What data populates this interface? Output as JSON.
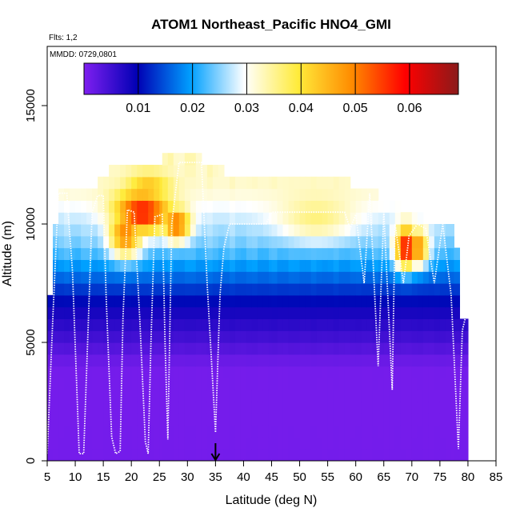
{
  "chart_data": {
    "type": "heatmap",
    "title": "ATOM1 Northeast_Pacific HNO4_GMI",
    "flights_label": "Flts: 1,2",
    "dates_label": "MMDD: 0729,0801",
    "xlabel": "Latitude (deg N)",
    "ylabel": "Altitude (m)",
    "xlim": [
      5,
      85
    ],
    "ylim": [
      0,
      17500
    ],
    "x_ticks": [
      "5",
      "10",
      "15",
      "20",
      "25",
      "30",
      "35",
      "40",
      "45",
      "50",
      "55",
      "60",
      "65",
      "70",
      "75",
      "80",
      "85"
    ],
    "y_ticks": [
      "0",
      "5000",
      "10000",
      "15000"
    ],
    "colorbar": {
      "range": [
        0,
        0.069
      ],
      "ticks": [
        "0.01",
        "0.02",
        "0.03",
        "0.04",
        "0.05",
        "0.06"
      ],
      "tick_values": [
        0.01,
        0.02,
        0.03,
        0.04,
        0.05,
        0.06
      ],
      "colors": [
        "#7f1ff0",
        "#0000b4",
        "#00a0ff",
        "#ffffff",
        "#ffeb3b",
        "#ff8c00",
        "#ff0000",
        "#8b1a1a"
      ]
    },
    "marker_latitude": 35,
    "columns": [
      {
        "x": [
          5.0,
          6.0
        ],
        "top": 7000
      },
      {
        "x": [
          6.0,
          7.0
        ],
        "top": 10000
      },
      {
        "x": [
          7.0,
          14.0
        ],
        "top": 11500
      },
      {
        "x": [
          14.0,
          16.0
        ],
        "top": 12000
      },
      {
        "x": [
          16.0,
          25.5
        ],
        "top": 12500
      },
      {
        "x": [
          25.5,
          32.5
        ],
        "top": 13000
      },
      {
        "x": [
          32.5,
          36.5
        ],
        "top": 12500
      },
      {
        "x": [
          36.5,
          45.0
        ],
        "top": 12000
      },
      {
        "x": [
          45.0,
          59.0
        ],
        "top": 12000
      },
      {
        "x": [
          59.0,
          64.0
        ],
        "top": 11500
      },
      {
        "x": [
          64.0,
          68.0
        ],
        "top": 11000
      },
      {
        "x": [
          68.0,
          72.0
        ],
        "top": 10500
      },
      {
        "x": [
          72.0,
          77.5
        ],
        "top": 10000
      },
      {
        "x": [
          77.5,
          78.5
        ],
        "top": 9000
      },
      {
        "x": [
          78.5,
          80.0
        ],
        "top": 6000
      }
    ],
    "hotspots": [
      {
        "lat": 22.0,
        "alt": 10500,
        "value": 0.058,
        "rx": 5.0,
        "ry": 900
      },
      {
        "lat": 19.0,
        "alt": 9600,
        "value": 0.05,
        "rx": 3.0,
        "ry": 1000
      },
      {
        "lat": 28.0,
        "alt": 10000,
        "value": 0.052,
        "rx": 2.5,
        "ry": 700
      },
      {
        "lat": 23.0,
        "alt": 11500,
        "value": 0.044,
        "rx": 4.0,
        "ry": 700
      },
      {
        "lat": 69.0,
        "alt": 9000,
        "value": 0.06,
        "rx": 2.0,
        "ry": 900
      },
      {
        "lat": 71.0,
        "alt": 9000,
        "value": 0.05,
        "rx": 2.0,
        "ry": 800
      },
      {
        "lat": 53.0,
        "alt": 10300,
        "value": 0.036,
        "rx": 7.0,
        "ry": 1000
      }
    ],
    "flight_track": [
      [
        5.0,
        300
      ],
      [
        6.0,
        6000
      ],
      [
        7.0,
        11300
      ],
      [
        8.5,
        11300
      ],
      [
        9.5,
        8000
      ],
      [
        10.7,
        300
      ],
      [
        11.5,
        300
      ],
      [
        12.5,
        7000
      ],
      [
        13.0,
        10500
      ],
      [
        14.0,
        11200
      ],
      [
        15.0,
        11200
      ],
      [
        15.5,
        7000
      ],
      [
        16.5,
        1000
      ],
      [
        17.2,
        300
      ],
      [
        18.0,
        400
      ],
      [
        18.5,
        6000
      ],
      [
        19.3,
        10600
      ],
      [
        20.5,
        10500
      ],
      [
        21.5,
        6000
      ],
      [
        22.5,
        800
      ],
      [
        23.0,
        300
      ],
      [
        23.5,
        5000
      ],
      [
        24.2,
        10300
      ],
      [
        25.5,
        10400
      ],
      [
        26.0,
        5000
      ],
      [
        26.5,
        900
      ],
      [
        27.2,
        10000
      ],
      [
        28.5,
        12600
      ],
      [
        32.5,
        12600
      ],
      [
        33.5,
        7500
      ],
      [
        35.0,
        1200
      ],
      [
        35.8,
        7000
      ],
      [
        36.5,
        9000
      ],
      [
        37.5,
        10000
      ],
      [
        44.0,
        10000
      ],
      [
        45.0,
        10500
      ],
      [
        58.0,
        10500
      ],
      [
        59.0,
        9800
      ],
      [
        60.0,
        10400
      ],
      [
        61.5,
        7500
      ],
      [
        62.5,
        11300
      ],
      [
        64.0,
        4000
      ],
      [
        65.0,
        10500
      ],
      [
        66.5,
        3000
      ],
      [
        67.0,
        10000
      ],
      [
        68.5,
        7500
      ],
      [
        69.5,
        9500
      ],
      [
        71.0,
        10000
      ],
      [
        72.5,
        9800
      ],
      [
        74.0,
        7500
      ],
      [
        75.5,
        10000
      ],
      [
        77.0,
        7000
      ],
      [
        78.3,
        500
      ],
      [
        79.0,
        5500
      ],
      [
        79.5,
        6000
      ]
    ],
    "grid": false,
    "legend": "colorbar-top"
  }
}
